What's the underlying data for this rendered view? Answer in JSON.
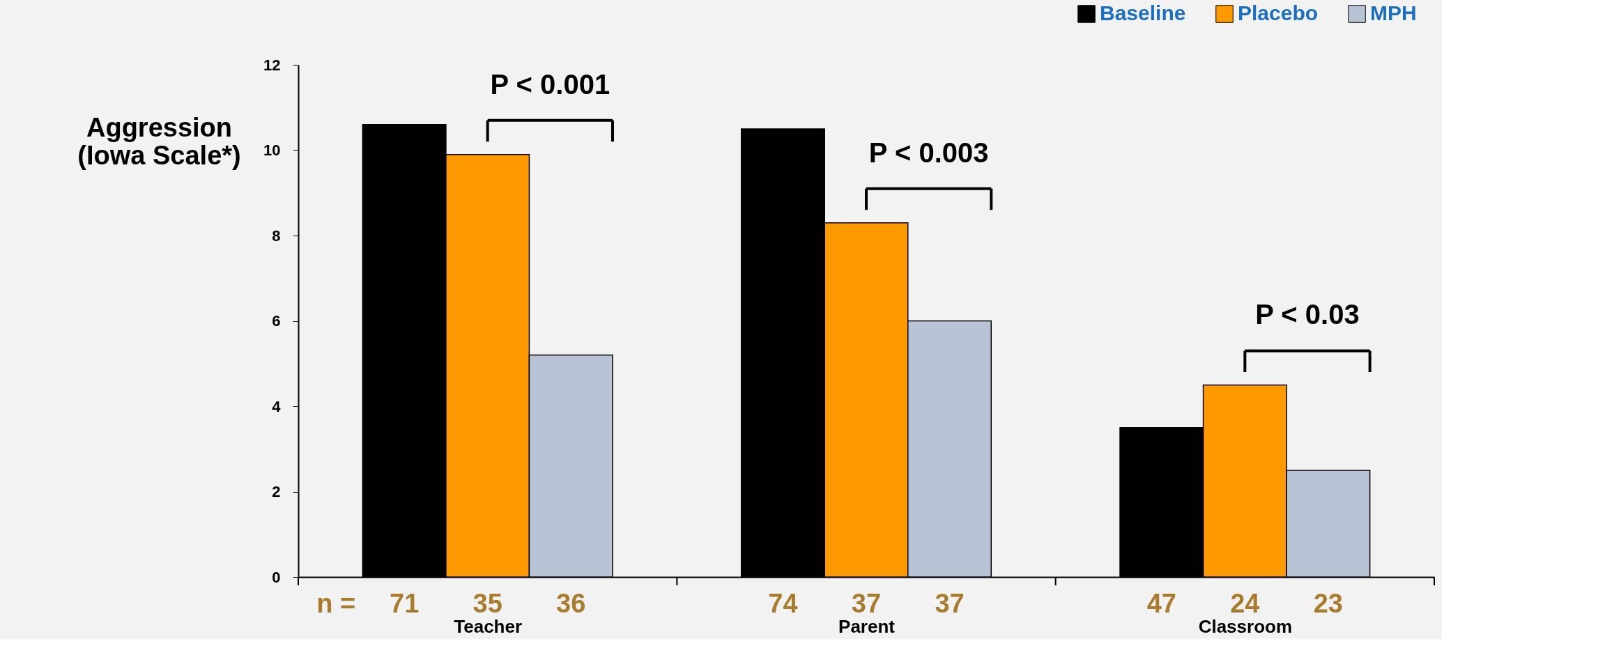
{
  "chart_data": {
    "type": "bar",
    "ylabel": "Aggression (Iowa Scale*)",
    "categories": [
      "Teacher",
      "Parent",
      "Classroom"
    ],
    "series": [
      {
        "name": "Baseline",
        "color": "#000000",
        "values": [
          10.6,
          10.5,
          3.5
        ]
      },
      {
        "name": "Placebo",
        "color": "#ff9900",
        "values": [
          9.9,
          8.3,
          4.5
        ]
      },
      {
        "name": "MPH",
        "color": "#b8c4d6",
        "values": [
          5.2,
          6.0,
          2.5
        ]
      }
    ],
    "ylim": [
      0,
      12
    ],
    "yticks": [
      0,
      2,
      4,
      6,
      8,
      10,
      12
    ],
    "grid": false,
    "legend": "top right",
    "annotations": [
      "P < 0.001",
      "P < 0.003",
      "P < 0.03",
      "n =",
      "71",
      "35",
      "36",
      "74",
      "37",
      "37",
      "47",
      "24",
      "23"
    ]
  }
}
